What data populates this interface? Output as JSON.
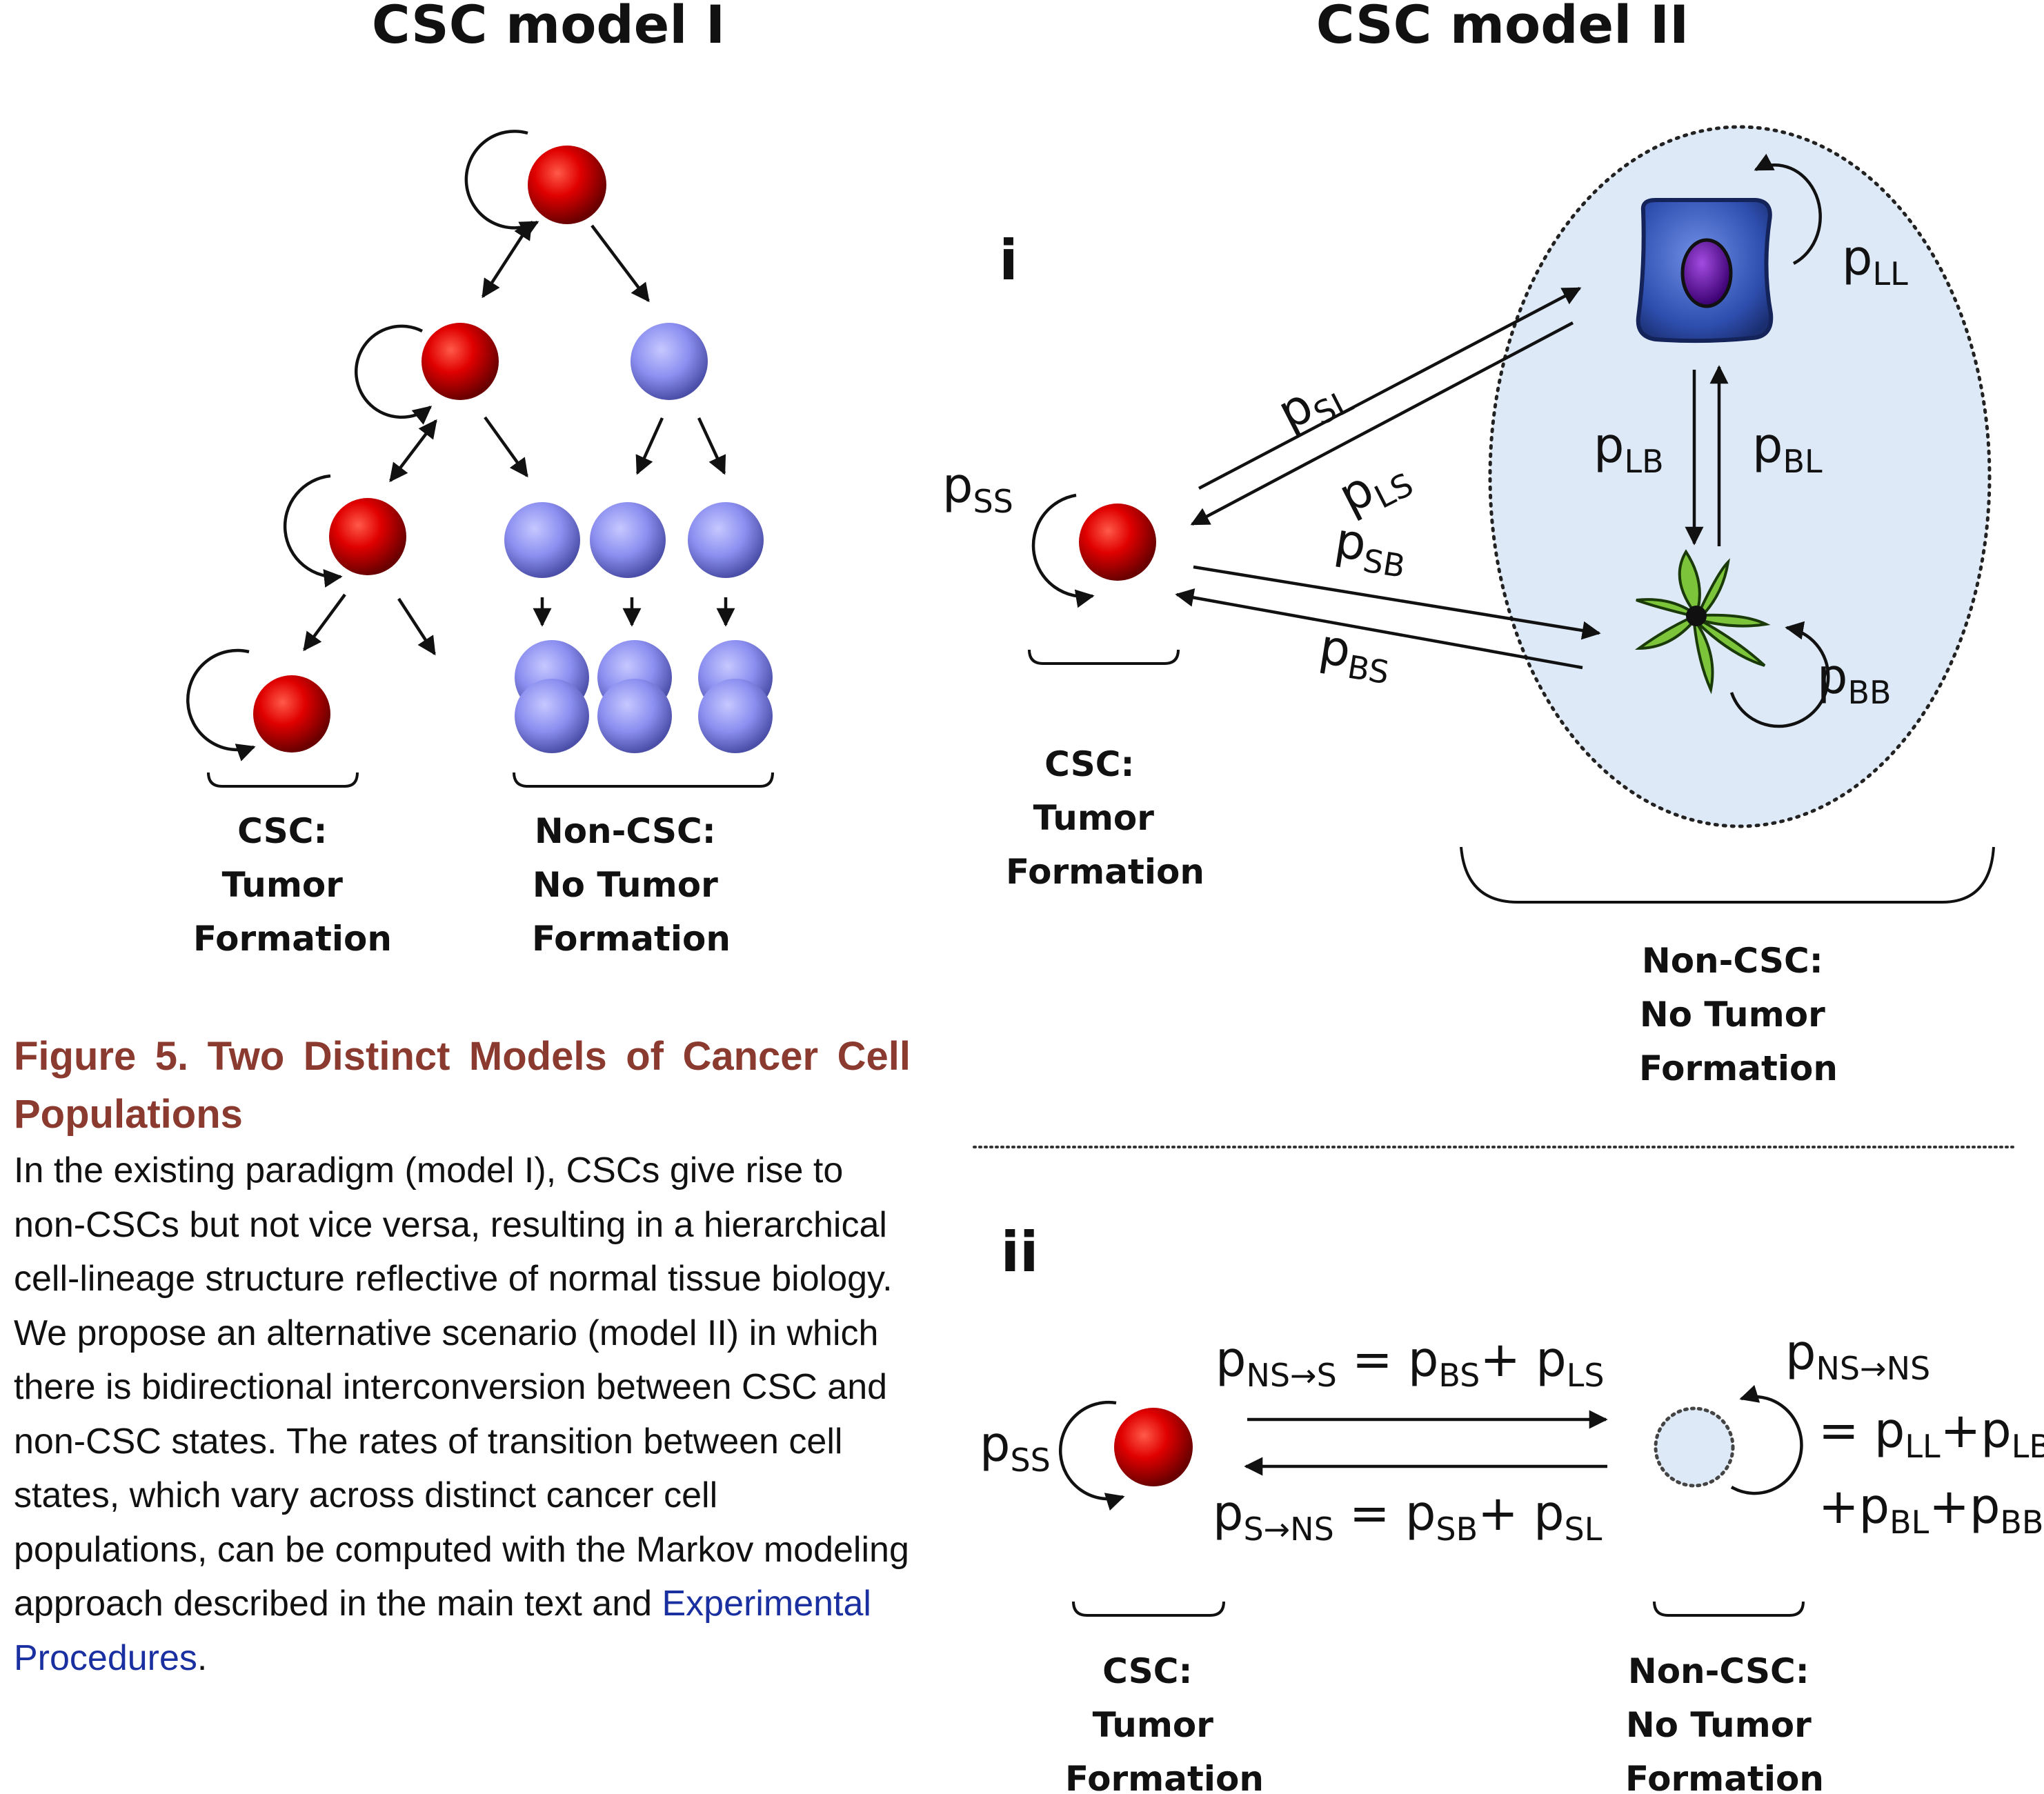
{
  "model1": {
    "title": "CSC model I",
    "csc_label": [
      "CSC:",
      "Tumor",
      "Formation"
    ],
    "noncsc_label": [
      "Non-CSC:",
      "No Tumor",
      "Formation"
    ]
  },
  "model2": {
    "title": "CSC model II",
    "panel_i": {
      "label": "i",
      "p_ss": {
        "main": "p",
        "sub": "SS"
      },
      "p_sl": {
        "main": "p",
        "sub": "SL"
      },
      "p_ls": {
        "main": "p",
        "sub": "LS"
      },
      "p_sb": {
        "main": "p",
        "sub": "SB"
      },
      "p_bs": {
        "main": "p",
        "sub": "BS"
      },
      "p_ll": {
        "main": "p",
        "sub": "LL"
      },
      "p_lb": {
        "main": "p",
        "sub": "LB"
      },
      "p_bl": {
        "main": "p",
        "sub": "BL"
      },
      "p_bb": {
        "main": "p",
        "sub": "BB"
      },
      "csc_label": [
        "CSC:",
        "Tumor",
        "Formation"
      ],
      "noncsc_label": [
        "Non-CSC:",
        "No Tumor",
        "Formation"
      ]
    },
    "panel_ii": {
      "label": "ii",
      "p_ss": {
        "main": "p",
        "sub": "SS"
      },
      "eq_top": {
        "p1": "p",
        "s1": "NS→S",
        "eq": " = ",
        "p2": "p",
        "s2": "BS",
        "plus": "+ ",
        "p3": "p",
        "s3": "LS"
      },
      "eq_bottom": {
        "p1": "p",
        "s1": "S→NS",
        "eq": " = ",
        "p2": "p",
        "s2": "SB",
        "plus": "+ ",
        "p3": "p",
        "s3": "SL"
      },
      "p_nsns": {
        "main": "p",
        "sub": "NS→NS"
      },
      "eq_line1": {
        "eq": "= ",
        "p1": "p",
        "s1": "LL",
        "plus": "+",
        "p2": "p",
        "s2": "LB"
      },
      "eq_line2": {
        "plus1": "+",
        "p1": "p",
        "s1": "BL",
        "plus2": "+",
        "p2": "p",
        "s2": "BB"
      },
      "csc_label": [
        "CSC:",
        "Tumor",
        "Formation"
      ],
      "noncsc_label": [
        "Non-CSC:",
        "No Tumor",
        "Formation"
      ]
    }
  },
  "caption": {
    "title": "Figure 5. Two Distinct Models of Cancer Cell Populations",
    "body": "In the existing paradigm (model I), CSCs give rise to non-CSCs but not vice versa, resulting in a hierarchical cell-lineage structure reflective of normal tissue biology. We propose an alternative scenario (model II) in which there is bidirectional interconversion between CSC and non-CSC states. The rates of transition between cell states, which vary across distinct cancer cell populations, can be computed with the Markov modeling approach described in the main text and ",
    "link": "Experimental Procedures",
    "end": "."
  },
  "colors": {
    "csc_red": "#e00000",
    "noncsc_purple": "#8c8ff0",
    "ellipse_fill": "#dde9f7",
    "caption_title": "#8b3a2f",
    "link_blue": "#1a2fa0"
  }
}
